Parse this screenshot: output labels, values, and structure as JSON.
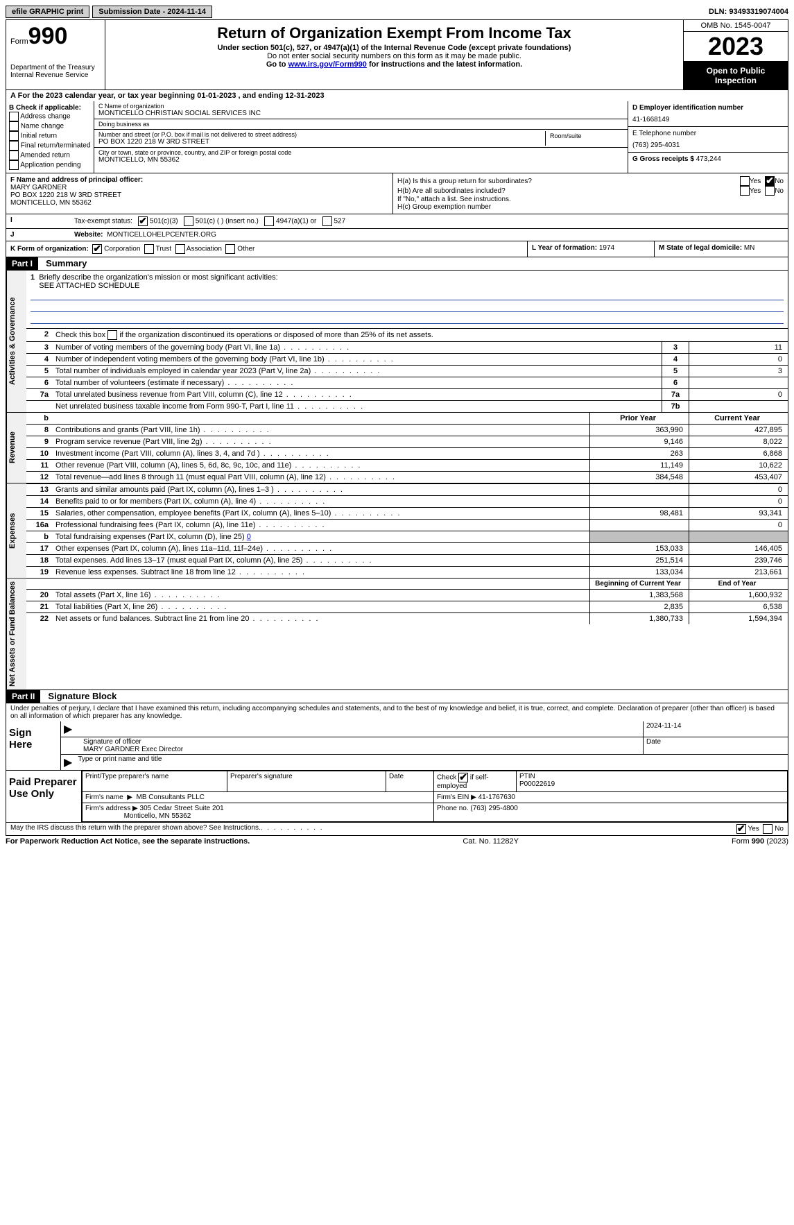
{
  "topbar": {
    "efile": "efile GRAPHIC print",
    "submission": "Submission Date - 2024-11-14",
    "dln_label": "DLN:",
    "dln": "93493319074004"
  },
  "header": {
    "form_label": "Form",
    "form_number": "990",
    "dept": "Department of the Treasury\nInternal Revenue Service",
    "title": "Return of Organization Exempt From Income Tax",
    "sub1": "Under section 501(c), 527, or 4947(a)(1) of the Internal Revenue Code (except private foundations)",
    "sub2": "Do not enter social security numbers on this form as it may be made public.",
    "sub3_pre": "Go to ",
    "sub3_link": "www.irs.gov/Form990",
    "sub3_post": " for instructions and the latest information.",
    "omb": "OMB No. 1545-0047",
    "year": "2023",
    "open": "Open to Public Inspection"
  },
  "line_a": "For the 2023 calendar year, or tax year beginning 01-01-2023   , and ending 12-31-2023",
  "box_b": {
    "label": "B Check if applicable:",
    "items": [
      "Address change",
      "Name change",
      "Initial return",
      "Final return/terminated",
      "Amended return",
      "Application pending"
    ]
  },
  "box_c": {
    "name_label": "C Name of organization",
    "name": "MONTICELLO CHRISTIAN SOCIAL SERVICES INC",
    "dba_label": "Doing business as",
    "dba": "",
    "street_label": "Number and street (or P.O. box if mail is not delivered to street address)",
    "room_label": "Room/suite",
    "street": "PO BOX 1220 218 W 3RD STREET",
    "city_label": "City or town, state or province, country, and ZIP or foreign postal code",
    "city": "MONTICELLO, MN  55362"
  },
  "box_d": {
    "label": "D Employer identification number",
    "ein": "41-1668149",
    "phone_label": "E Telephone number",
    "phone": "(763) 295-4031",
    "gross_label": "G Gross receipts $",
    "gross": "473,244"
  },
  "box_f": {
    "label": "F  Name and address of principal officer:",
    "name": "MARY GARDNER",
    "addr1": "PO BOX 1220 218 W 3RD STREET",
    "addr2": "MONTICELLO, MN  55362"
  },
  "box_h": {
    "a_label": "H(a)  Is this a group return for subordinates?",
    "b_label": "H(b)  Are all subordinates included?",
    "b_note": "If \"No,\" attach a list. See instructions.",
    "c_label": "H(c)  Group exemption number",
    "yes": "Yes",
    "no": "No"
  },
  "box_i": {
    "label": "I",
    "text": "Tax-exempt status:",
    "opts": [
      "501(c)(3)",
      "501(c) (  ) (insert no.)",
      "4947(a)(1) or",
      "527"
    ]
  },
  "box_j": {
    "label": "J",
    "text": "Website:",
    "value": "MONTICELLOHELPCENTER.ORG"
  },
  "box_k": {
    "label": "K Form of organization:",
    "opts": [
      "Corporation",
      "Trust",
      "Association",
      "Other"
    ],
    "l_label": "L Year of formation:",
    "l_value": "1974",
    "m_label": "M State of legal domicile:",
    "m_value": "MN"
  },
  "part1": {
    "header": "Part I",
    "title": "Summary",
    "side1": "Activities & Governance",
    "side2": "Revenue",
    "side3": "Expenses",
    "side4": "Net Assets or Fund Balances",
    "line1_label": "Briefly describe the organization's mission or most significant activities:",
    "line1_value": "SEE ATTACHED SCHEDULE",
    "line2": "Check this box      if the organization discontinued its operations or disposed of more than 25% of its net assets.",
    "rows_gov": [
      {
        "n": "3",
        "t": "Number of voting members of the governing body (Part VI, line 1a)",
        "box": "3",
        "v": "11"
      },
      {
        "n": "4",
        "t": "Number of independent voting members of the governing body (Part VI, line 1b)",
        "box": "4",
        "v": "0"
      },
      {
        "n": "5",
        "t": "Total number of individuals employed in calendar year 2023 (Part V, line 2a)",
        "box": "5",
        "v": "3"
      },
      {
        "n": "6",
        "t": "Total number of volunteers (estimate if necessary)",
        "box": "6",
        "v": ""
      },
      {
        "n": "7a",
        "t": "Total unrelated business revenue from Part VIII, column (C), line 12",
        "box": "7a",
        "v": "0"
      },
      {
        "n": "",
        "t": "Net unrelated business taxable income from Form 990-T, Part I, line 11",
        "box": "7b",
        "v": ""
      }
    ],
    "col_prior": "Prior Year",
    "col_current": "Current Year",
    "rows_rev": [
      {
        "n": "8",
        "t": "Contributions and grants (Part VIII, line 1h)",
        "p": "363,990",
        "c": "427,895"
      },
      {
        "n": "9",
        "t": "Program service revenue (Part VIII, line 2g)",
        "p": "9,146",
        "c": "8,022"
      },
      {
        "n": "10",
        "t": "Investment income (Part VIII, column (A), lines 3, 4, and 7d )",
        "p": "263",
        "c": "6,868"
      },
      {
        "n": "11",
        "t": "Other revenue (Part VIII, column (A), lines 5, 6d, 8c, 9c, 10c, and 11e)",
        "p": "11,149",
        "c": "10,622"
      },
      {
        "n": "12",
        "t": "Total revenue—add lines 8 through 11 (must equal Part VIII, column (A), line 12)",
        "p": "384,548",
        "c": "453,407"
      }
    ],
    "rows_exp": [
      {
        "n": "13",
        "t": "Grants and similar amounts paid (Part IX, column (A), lines 1–3 )",
        "p": "",
        "c": "0"
      },
      {
        "n": "14",
        "t": "Benefits paid to or for members (Part IX, column (A), line 4)",
        "p": "",
        "c": "0"
      },
      {
        "n": "15",
        "t": "Salaries, other compensation, employee benefits (Part IX, column (A), lines 5–10)",
        "p": "98,481",
        "c": "93,341"
      },
      {
        "n": "16a",
        "t": "Professional fundraising fees (Part IX, column (A), line 11e)",
        "p": "",
        "c": "0"
      },
      {
        "n": "b",
        "t": "Total fundraising expenses (Part IX, column (D), line 25) 0",
        "p": "SHADE",
        "c": "SHADE"
      },
      {
        "n": "17",
        "t": "Other expenses (Part IX, column (A), lines 11a–11d, 11f–24e)",
        "p": "153,033",
        "c": "146,405"
      },
      {
        "n": "18",
        "t": "Total expenses. Add lines 13–17 (must equal Part IX, column (A), line 25)",
        "p": "251,514",
        "c": "239,746"
      },
      {
        "n": "19",
        "t": "Revenue less expenses. Subtract line 18 from line 12",
        "p": "133,034",
        "c": "213,661"
      }
    ],
    "col_begin": "Beginning of Current Year",
    "col_end": "End of Year",
    "rows_net": [
      {
        "n": "20",
        "t": "Total assets (Part X, line 16)",
        "p": "1,383,568",
        "c": "1,600,932"
      },
      {
        "n": "21",
        "t": "Total liabilities (Part X, line 26)",
        "p": "2,835",
        "c": "6,538"
      },
      {
        "n": "22",
        "t": "Net assets or fund balances. Subtract line 21 from line 20",
        "p": "1,380,733",
        "c": "1,594,394"
      }
    ]
  },
  "part2": {
    "header": "Part II",
    "title": "Signature Block",
    "penalties": "Under penalties of perjury, I declare that I have examined this return, including accompanying schedules and statements, and to the best of my knowledge and belief, it is true, correct, and complete. Declaration of preparer (other than officer) is based on all information of which preparer has any knowledge.",
    "sign_here": "Sign Here",
    "sig_officer": "Signature of officer",
    "officer_name": "MARY GARDNER  Exec Director",
    "type_print": "Type or print name and title",
    "date_label": "Date",
    "date_value": "2024-11-14",
    "paid_prep": "Paid Preparer Use Only",
    "prep_name_label": "Print/Type preparer's name",
    "prep_sig_label": "Preparer's signature",
    "self_emp": "Check        if self-employed",
    "ptin_label": "PTIN",
    "ptin": "P00022619",
    "firm_name_label": "Firm's name",
    "firm_name": "MB Consultants PLLC",
    "firm_ein_label": "Firm's EIN",
    "firm_ein": "41-1767630",
    "firm_addr_label": "Firm's address",
    "firm_addr1": "305 Cedar Street Suite 201",
    "firm_addr2": "Monticello, MN  55362",
    "phone_label": "Phone no.",
    "phone": "(763) 295-4800",
    "discuss": "May the IRS discuss this return with the preparer shown above? See Instructions.",
    "yes": "Yes",
    "no": "No"
  },
  "footer": {
    "left": "For Paperwork Reduction Act Notice, see the separate instructions.",
    "center": "Cat. No. 11282Y",
    "right_pre": "Form ",
    "right_form": "990",
    "right_post": " (2023)"
  },
  "colors": {
    "black": "#000000",
    "shade": "#c0c0c0",
    "blue_line": "#2040a0"
  }
}
